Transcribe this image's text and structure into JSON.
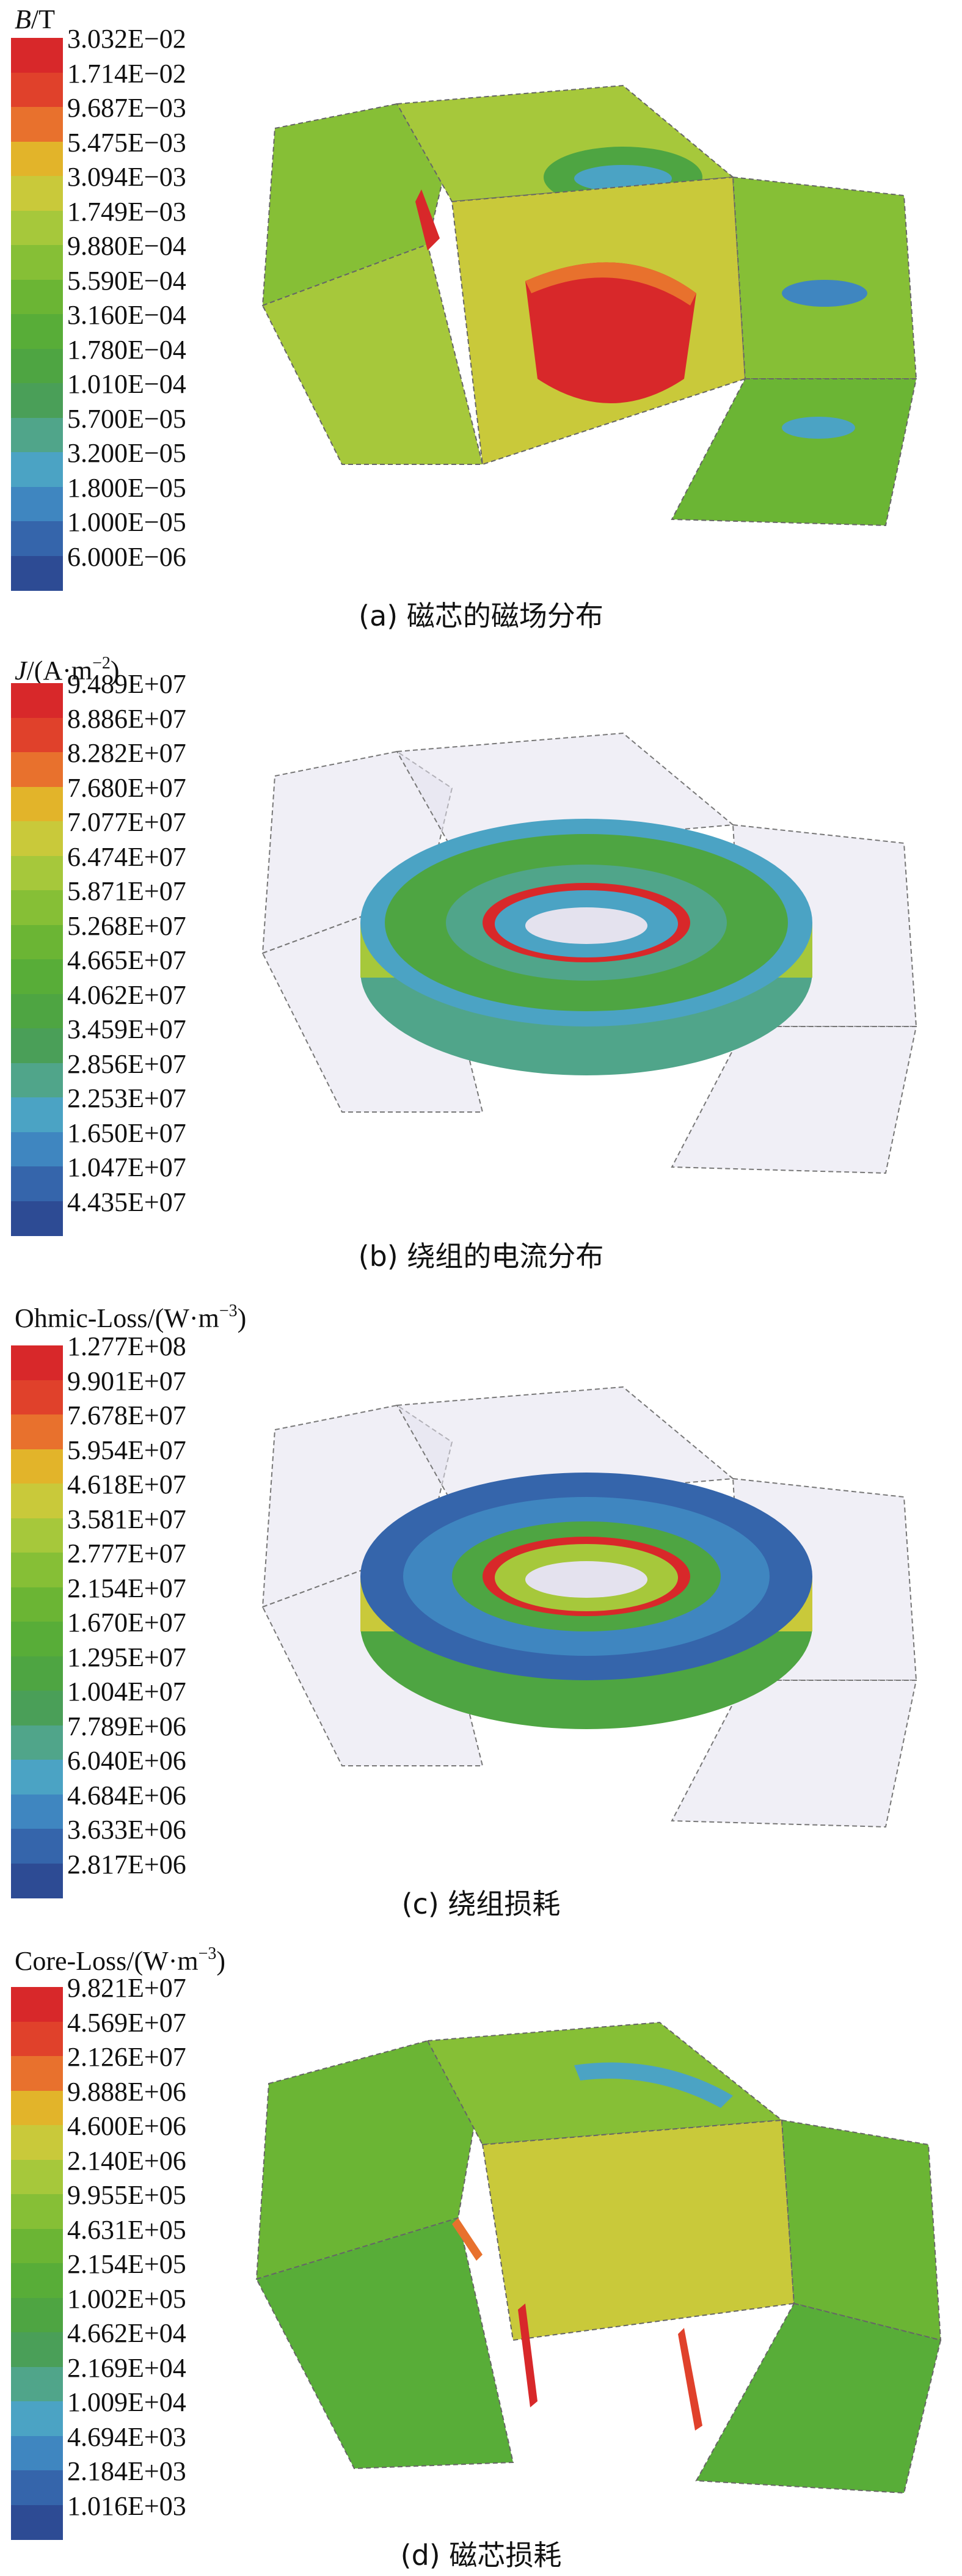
{
  "panels": [
    {
      "legend_title": "B/T",
      "title_italic": "B",
      "title_rest": "/T",
      "ticks": [
        "3.032E−02",
        "1.714E−02",
        "9.687E−03",
        "5.475E−03",
        "3.094E−03",
        "1.749E−03",
        "9.880E−04",
        "5.590E−04",
        "3.160E−04",
        "1.780E−04",
        "1.010E−04",
        "5.700E−05",
        "3.200E−05",
        "1.800E−05",
        "1.000E−05",
        "6.000E−06"
      ],
      "colors": [
        "#d8282a",
        "#e0412b",
        "#e8712d",
        "#e2b42a",
        "#c9c93a",
        "#a6c83b",
        "#86bf36",
        "#6bb534",
        "#58ad38",
        "#4ea542",
        "#4a9f58",
        "#50a58a",
        "#4ba3c4",
        "#3f86c0",
        "#3565ab",
        "#2d4b94"
      ],
      "caption": "(a) 磁芯的磁场分布",
      "scene": "core"
    },
    {
      "legend_title": "J/(A·m−2)",
      "title_italic": "J",
      "title_rest": "/(A·m",
      "title_sup": "−2",
      "title_end": ")",
      "ticks": [
        "9.489E+07",
        "8.886E+07",
        "8.282E+07",
        "7.680E+07",
        "7.077E+07",
        "6.474E+07",
        "5.871E+07",
        "5.268E+07",
        "4.665E+07",
        "4.062E+07",
        "3.459E+07",
        "2.856E+07",
        "2.253E+07",
        "1.650E+07",
        "1.047E+07",
        "4.435E+07"
      ],
      "colors": [
        "#d8282a",
        "#e0412b",
        "#e8712d",
        "#e2b42a",
        "#c9c93a",
        "#a6c83b",
        "#86bf36",
        "#6bb534",
        "#58ad38",
        "#4ea542",
        "#4a9f58",
        "#50a58a",
        "#4ba3c4",
        "#3f86c0",
        "#3565ab",
        "#2d4b94"
      ],
      "caption": "(b) 绕组的电流分布",
      "scene": "winding-current"
    },
    {
      "legend_title": "Ohmic-Loss/(W·m−3)",
      "title_italic": "",
      "title_rest": "Ohmic-Loss/(W·m",
      "title_sup": "−3",
      "title_end": ")",
      "ticks": [
        "1.277E+08",
        "9.901E+07",
        "7.678E+07",
        "5.954E+07",
        "4.618E+07",
        "3.581E+07",
        "2.777E+07",
        "2.154E+07",
        "1.670E+07",
        "1.295E+07",
        "1.004E+07",
        "7.789E+06",
        "6.040E+06",
        "4.684E+06",
        "3.633E+06",
        "2.817E+06"
      ],
      "colors": [
        "#d8282a",
        "#e0412b",
        "#e8712d",
        "#e2b42a",
        "#c9c93a",
        "#a6c83b",
        "#86bf36",
        "#6bb534",
        "#58ad38",
        "#4ea542",
        "#4a9f58",
        "#50a58a",
        "#4ba3c4",
        "#3f86c0",
        "#3565ab",
        "#2d4b94"
      ],
      "caption": "(c) 绕组损耗",
      "scene": "winding-loss"
    },
    {
      "legend_title": "Core-Loss/(W·m−3)",
      "title_italic": "",
      "title_rest": "Core-Loss/(W·m",
      "title_sup": "−3",
      "title_end": ")",
      "ticks": [
        "9.821E+07",
        "4.569E+07",
        "2.126E+07",
        "9.888E+06",
        "4.600E+06",
        "2.140E+06",
        "9.955E+05",
        "4.631E+05",
        "2.154E+05",
        "1.002E+05",
        "4.662E+04",
        "2.169E+04",
        "1.009E+04",
        "4.694E+03",
        "2.184E+03",
        "1.016E+03"
      ],
      "colors": [
        "#d8282a",
        "#e0412b",
        "#e8712d",
        "#e2b42a",
        "#c9c93a",
        "#a6c83b",
        "#86bf36",
        "#6bb534",
        "#58ad38",
        "#4ea542",
        "#4a9f58",
        "#50a58a",
        "#4ba3c4",
        "#3f86c0",
        "#3565ab",
        "#2d4b94"
      ],
      "caption": "(d) 磁芯损耗",
      "scene": "core-loss"
    }
  ]
}
